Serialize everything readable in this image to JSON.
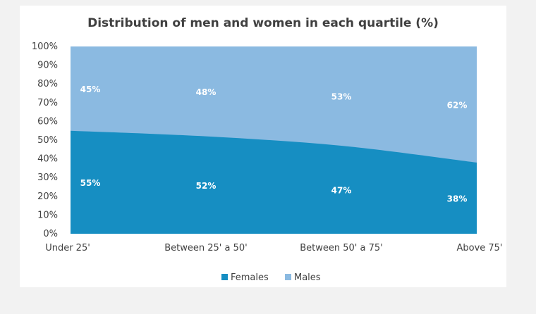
{
  "chart_data": {
    "type": "area",
    "stacked": true,
    "title": "Distribution of men and women in each quartile (%)",
    "categories": [
      "Under 25'",
      "Between 25' a 50'",
      "Between 50' a 75'",
      "Above 75'"
    ],
    "series": [
      {
        "name": "Females",
        "values": [
          55,
          52,
          47,
          38
        ],
        "labels": [
          "55%",
          "52%",
          "47%",
          "38%"
        ],
        "color": "#168ec2"
      },
      {
        "name": "Males",
        "values": [
          45,
          48,
          53,
          62
        ],
        "labels": [
          "45%",
          "48%",
          "53%",
          "62%"
        ],
        "color": "#8bbae1"
      }
    ],
    "yticks": [
      "0%",
      "10%",
      "20%",
      "30%",
      "40%",
      "50%",
      "60%",
      "70%",
      "80%",
      "90%",
      "100%"
    ],
    "ylim": [
      0,
      100
    ],
    "grid": false,
    "legend": "bottom"
  }
}
